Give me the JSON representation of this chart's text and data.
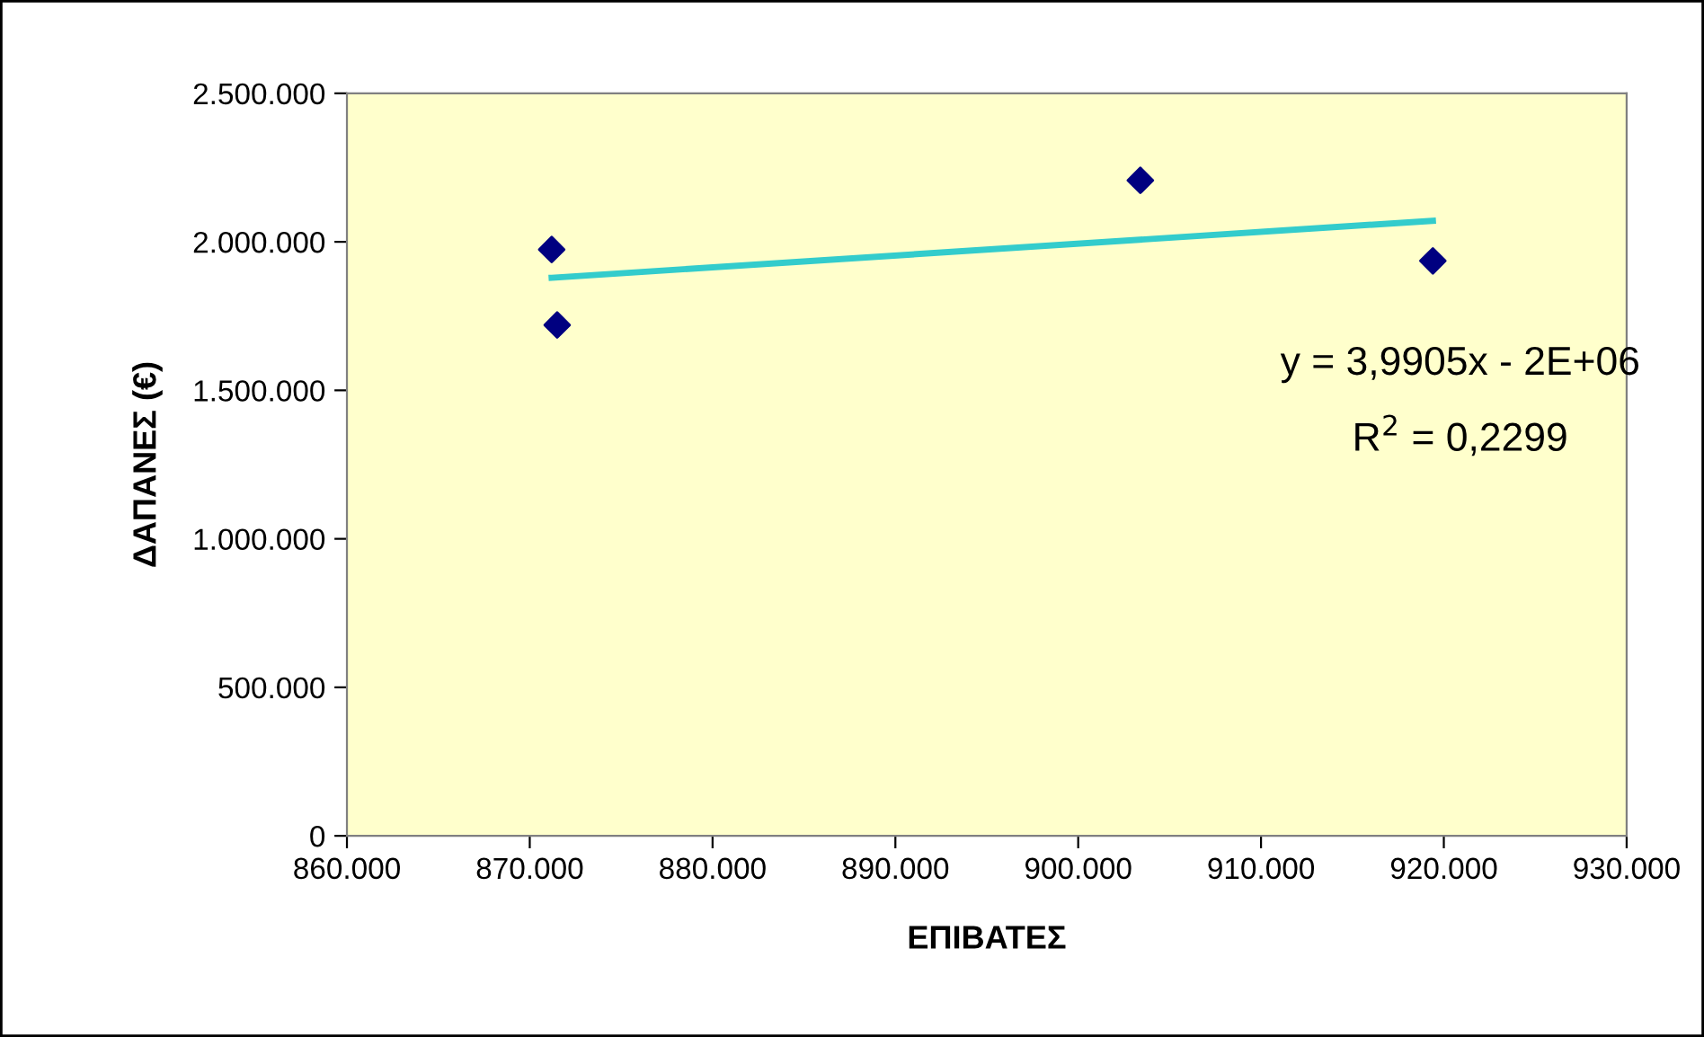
{
  "chart_data": {
    "type": "scatter",
    "xlabel": "ΕΠΙΒΑΤΕΣ",
    "ylabel": "ΔΑΠΑΝΕΣ (€)",
    "series": [
      {
        "color": "#000080",
        "marker": "diamond",
        "x": [
          871200,
          871500,
          903400,
          919400
        ],
        "values": [
          1974000,
          1720000,
          2207000,
          1936000
        ]
      },
      {
        "type": "line",
        "color": "#33cccc",
        "marker": "none",
        "line_style": "solid",
        "x": [
          871200,
          919400
        ],
        "values": [
          1879000,
          2071000
        ]
      }
    ],
    "annotations": [
      "y = 3,9905x - 2E+06",
      "R$^{2}$ = 0,2299"
    ],
    "xlim": [
      860000,
      930000
    ],
    "xticks": [
      {
        "value": 860000,
        "label": "860.000"
      },
      {
        "value": 870000,
        "label": "870.000"
      },
      {
        "value": 880000,
        "label": "880.000"
      },
      {
        "value": 890000,
        "label": "890.000"
      },
      {
        "value": 900000,
        "label": "900.000"
      },
      {
        "value": 910000,
        "label": "910.000"
      },
      {
        "value": 920000,
        "label": "920.000"
      },
      {
        "value": 930000,
        "label": "930.000"
      }
    ],
    "ylim": [
      0,
      2500000
    ],
    "yticks": [
      0,
      {
        "value": 500000,
        "label": "500.000"
      },
      {
        "value": 1000000,
        "label": "1.000.000"
      },
      {
        "value": 1500000,
        "label": "1.500.000"
      },
      {
        "value": 2000000,
        "label": "2.000.000"
      },
      {
        "value": 2500000,
        "label": "2.500.000"
      }
    ],
    "grid": false,
    "legend": false
  }
}
